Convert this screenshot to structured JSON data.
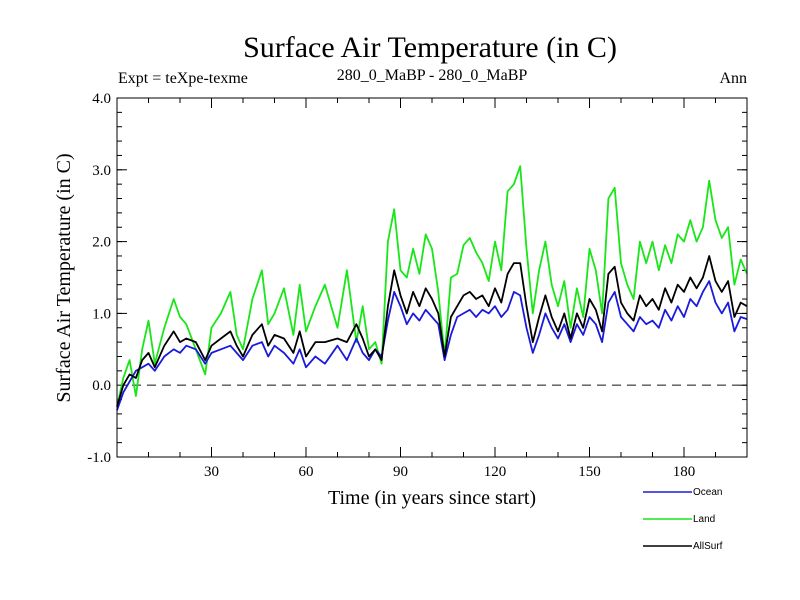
{
  "chart_data": {
    "type": "line",
    "title": "Surface Air Temperature (in C)",
    "subtitle_left": "Expt = teXpe-texme",
    "subtitle_center": "280_0_MaBP - 280_0_MaBP",
    "subtitle_right": "Ann",
    "xlabel": "Time (in years since start)",
    "ylabel": "Surface Air Temperature (in C)",
    "xlim": [
      0,
      200
    ],
    "ylim": [
      -1.0,
      4.0
    ],
    "xticks": [
      30,
      60,
      90,
      120,
      150,
      180
    ],
    "xtick_labels": [
      "30",
      "60",
      "90",
      "120",
      "150",
      "180"
    ],
    "yticks": [
      -1.0,
      0.0,
      1.0,
      2.0,
      3.0,
      4.0
    ],
    "ytick_labels": [
      "-1.0",
      "0.0",
      "1.0",
      "2.0",
      "3.0",
      "4.0"
    ],
    "reference_line": {
      "y": 0.0,
      "style": "dashed",
      "color": "#555555"
    },
    "legend_placement": "bottom-right",
    "x": [
      0,
      2,
      4,
      6,
      8,
      10,
      12,
      15,
      18,
      20,
      22,
      25,
      28,
      30,
      33,
      36,
      38,
      40,
      43,
      46,
      48,
      50,
      53,
      56,
      58,
      60,
      63,
      66,
      70,
      73,
      76,
      78,
      80,
      82,
      84,
      86,
      88,
      90,
      92,
      94,
      96,
      98,
      100,
      102,
      104,
      106,
      108,
      110,
      112,
      114,
      116,
      118,
      120,
      122,
      124,
      126,
      128,
      130,
      132,
      134,
      136,
      138,
      140,
      142,
      144,
      146,
      148,
      150,
      152,
      154,
      156,
      158,
      160,
      162,
      164,
      166,
      168,
      170,
      172,
      174,
      176,
      178,
      180,
      182,
      184,
      186,
      188,
      190,
      192,
      194,
      196,
      198,
      200
    ],
    "series": [
      {
        "name": "Ocean",
        "color": "#1a1adc",
        "values": [
          -0.35,
          -0.1,
          0.05,
          0.2,
          0.25,
          0.3,
          0.2,
          0.4,
          0.5,
          0.45,
          0.55,
          0.5,
          0.3,
          0.45,
          0.5,
          0.55,
          0.45,
          0.35,
          0.55,
          0.6,
          0.4,
          0.55,
          0.45,
          0.3,
          0.5,
          0.25,
          0.4,
          0.3,
          0.55,
          0.35,
          0.65,
          0.45,
          0.35,
          0.5,
          0.4,
          0.9,
          1.3,
          1.1,
          0.85,
          1.0,
          0.9,
          1.05,
          0.95,
          0.85,
          0.35,
          0.7,
          0.95,
          1.0,
          1.05,
          0.95,
          1.05,
          1.0,
          1.1,
          0.95,
          1.05,
          1.3,
          1.25,
          0.8,
          0.45,
          0.7,
          1.0,
          0.8,
          0.65,
          0.85,
          0.6,
          0.85,
          0.7,
          0.95,
          0.85,
          0.6,
          1.15,
          1.3,
          0.95,
          0.85,
          0.75,
          0.95,
          0.85,
          0.9,
          0.8,
          1.05,
          0.9,
          1.1,
          0.95,
          1.2,
          1.1,
          1.3,
          1.45,
          1.15,
          1.0,
          1.15,
          0.75,
          0.95,
          0.92
        ]
      },
      {
        "name": "Land",
        "color": "#19e619",
        "values": [
          -0.3,
          0.1,
          0.35,
          -0.15,
          0.5,
          0.9,
          0.3,
          0.8,
          1.2,
          0.95,
          0.85,
          0.5,
          0.15,
          0.8,
          1.0,
          1.3,
          0.7,
          0.5,
          1.2,
          1.6,
          0.85,
          1.0,
          1.35,
          0.7,
          1.4,
          0.75,
          1.1,
          1.4,
          0.8,
          1.6,
          0.6,
          1.1,
          0.5,
          0.6,
          0.3,
          2.0,
          2.45,
          1.6,
          1.5,
          1.9,
          1.55,
          2.1,
          1.9,
          1.3,
          0.4,
          1.5,
          1.55,
          1.95,
          2.05,
          1.85,
          1.7,
          1.45,
          2.0,
          1.6,
          2.7,
          2.8,
          3.05,
          1.9,
          1.0,
          1.6,
          2.0,
          1.4,
          1.1,
          1.45,
          0.8,
          1.35,
          0.95,
          1.9,
          1.6,
          1.0,
          2.6,
          2.75,
          1.7,
          1.4,
          1.2,
          2.0,
          1.7,
          2.0,
          1.6,
          1.95,
          1.7,
          2.1,
          2.0,
          2.3,
          2.0,
          2.2,
          2.85,
          2.3,
          2.05,
          2.2,
          1.4,
          1.75,
          1.55
        ]
      },
      {
        "name": "AllSurf",
        "color": "#000000",
        "values": [
          -0.3,
          0.0,
          0.15,
          0.1,
          0.35,
          0.45,
          0.25,
          0.55,
          0.75,
          0.6,
          0.65,
          0.6,
          0.35,
          0.55,
          0.65,
          0.75,
          0.55,
          0.4,
          0.7,
          0.85,
          0.55,
          0.7,
          0.65,
          0.45,
          0.75,
          0.4,
          0.6,
          0.6,
          0.65,
          0.6,
          0.85,
          0.65,
          0.4,
          0.5,
          0.35,
          1.1,
          1.6,
          1.25,
          1.0,
          1.3,
          1.1,
          1.35,
          1.2,
          1.0,
          0.4,
          0.95,
          1.1,
          1.25,
          1.3,
          1.2,
          1.25,
          1.1,
          1.35,
          1.15,
          1.55,
          1.7,
          1.7,
          1.1,
          0.6,
          0.95,
          1.25,
          0.95,
          0.75,
          1.0,
          0.65,
          1.0,
          0.8,
          1.2,
          1.05,
          0.75,
          1.55,
          1.65,
          1.15,
          1.0,
          0.9,
          1.25,
          1.1,
          1.2,
          1.05,
          1.35,
          1.15,
          1.4,
          1.3,
          1.5,
          1.35,
          1.5,
          1.8,
          1.45,
          1.3,
          1.45,
          0.95,
          1.15,
          1.1
        ]
      }
    ]
  }
}
